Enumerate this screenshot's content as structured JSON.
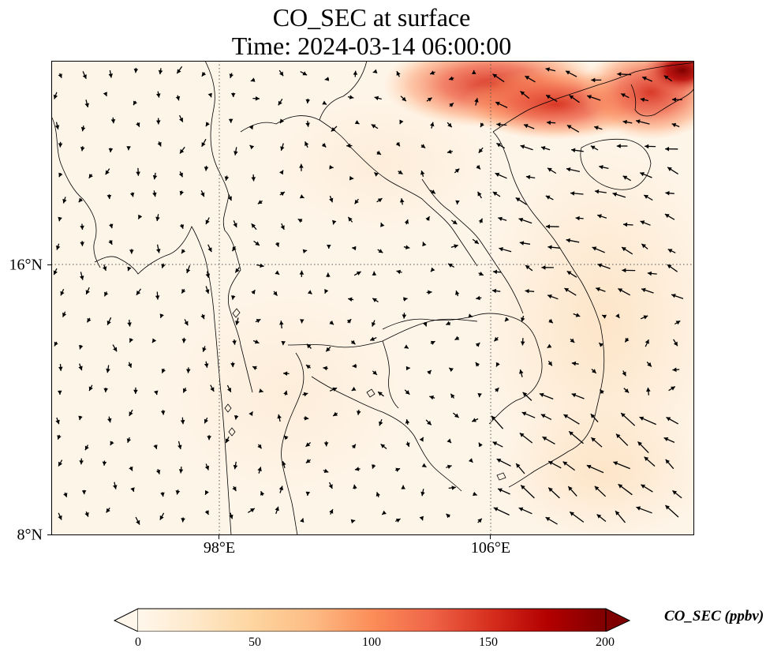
{
  "title_line1": "CO_SEC at surface",
  "title_line2": "Time: 2024-03-14 06:00:00",
  "axes": {
    "lon_labels": [
      "98°E",
      "106°E"
    ],
    "lat_labels": [
      "16°N",
      "8°N"
    ]
  },
  "colorbar": {
    "label": "CO_SEC (ppbv)",
    "ticks": [
      "0",
      "50",
      "100",
      "150",
      "200"
    ],
    "min": 0,
    "max": 200,
    "extend": "both",
    "colormap": [
      "#fff7ec",
      "#fee8c8",
      "#fdd49e",
      "#fdbb84",
      "#fc8d59",
      "#ef6548",
      "#d7301f",
      "#b30000",
      "#7f0000"
    ]
  },
  "colors": {
    "background_field": "#fef5e9",
    "coastline": "#000000",
    "gridline": "#555555"
  }
}
